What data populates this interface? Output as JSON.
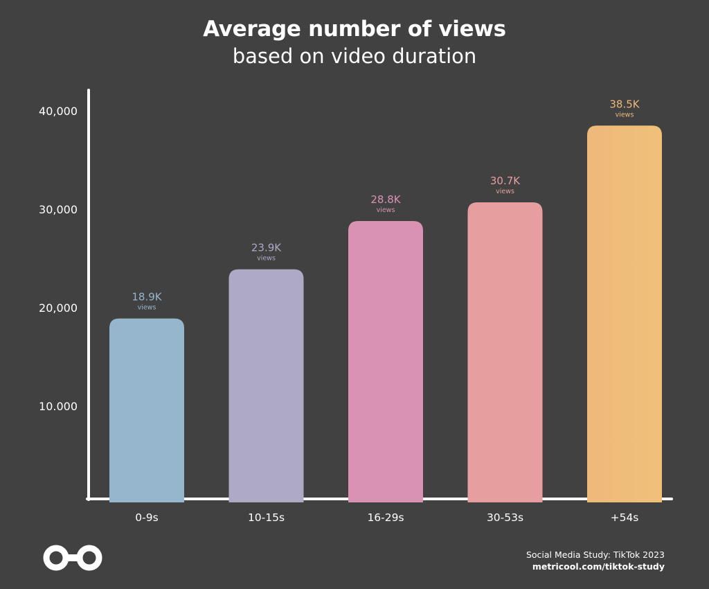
{
  "colors": {
    "background": "#414141",
    "axis": "#ffffff",
    "text": "#ffffff",
    "bar_colors": [
      "#95b6cc",
      "#aeaac6",
      "#da92b2",
      "#e69f9e",
      "#eeb97a"
    ]
  },
  "chart_data": {
    "type": "bar",
    "title": "Average number of views",
    "subtitle": "based on video duration",
    "xlabel": "",
    "ylabel": "",
    "categories": [
      "0-9s",
      "10-15s",
      "16-29s",
      "30-53s",
      "+54s"
    ],
    "values": [
      18900,
      23900,
      28800,
      30700,
      38500
    ],
    "value_labels": [
      "18.9K",
      "23.9K",
      "28.8K",
      "30.7K",
      "38.5K"
    ],
    "value_unit": "views",
    "yticks": [
      {
        "value": 10000,
        "label": "10.000"
      },
      {
        "value": 20000,
        "label": "20,000"
      },
      {
        "value": 30000,
        "label": "30,000"
      },
      {
        "value": 40000,
        "label": "40,000"
      }
    ],
    "ylim": [
      0,
      42000
    ],
    "grid": false,
    "legend": "none"
  },
  "footer": {
    "source": "Social Media Study: TikTok 2023",
    "url": "metricool.com/tiktok-study"
  },
  "logo": {
    "icon": "metricool-infinity-logo-icon"
  }
}
